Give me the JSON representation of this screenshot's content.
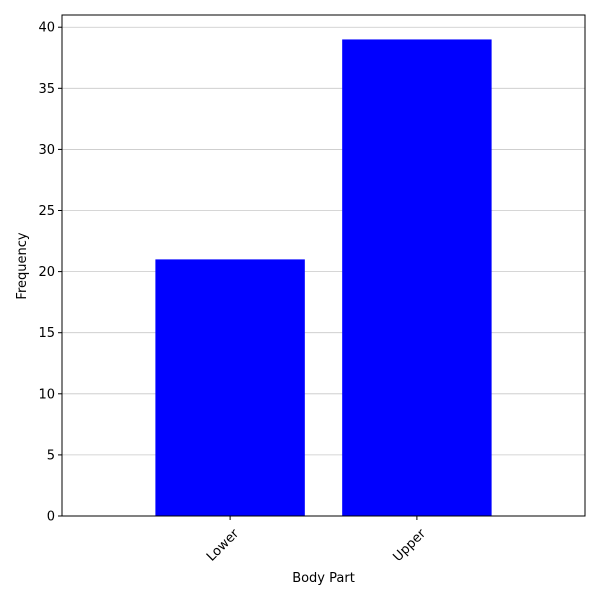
{
  "chart_data": {
    "type": "bar",
    "categories": [
      "Lower",
      "Upper"
    ],
    "values": [
      21,
      39
    ],
    "title": "",
    "xlabel": "Body Part",
    "ylabel": "Frequency",
    "ylim": [
      0,
      41
    ],
    "yticks": [
      0,
      5,
      10,
      15,
      20,
      25,
      30,
      35,
      40
    ],
    "grid": "horizontal",
    "legend": "none",
    "bar_color": "#0000ff",
    "grid_color": "#c8c8c8",
    "xtick_label_rotation": 45
  }
}
